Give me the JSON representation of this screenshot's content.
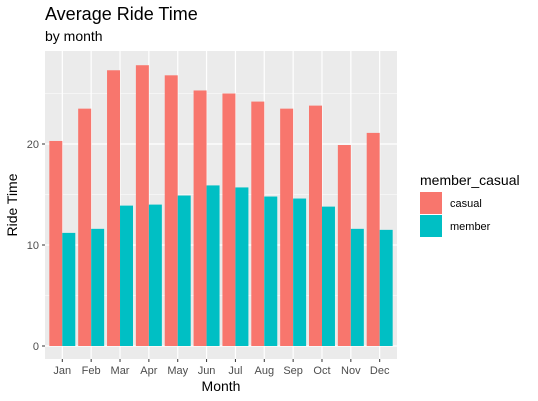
{
  "chart_data": {
    "type": "bar",
    "title": "Average Ride Time",
    "subtitle": "by month",
    "xlabel": "Month",
    "ylabel": "Ride Time",
    "categories": [
      "Jan",
      "Feb",
      "Mar",
      "Apr",
      "May",
      "Jun",
      "Jul",
      "Aug",
      "Sep",
      "Oct",
      "Nov",
      "Dec"
    ],
    "series": [
      {
        "name": "casual",
        "color": "#F8766D",
        "values": [
          20.3,
          23.5,
          27.3,
          27.8,
          26.8,
          25.3,
          25.0,
          24.2,
          23.5,
          23.8,
          19.9,
          21.1
        ]
      },
      {
        "name": "member",
        "color": "#00BFC4",
        "values": [
          11.2,
          11.6,
          13.9,
          14.0,
          14.9,
          15.9,
          15.7,
          14.8,
          14.6,
          13.8,
          11.6,
          11.5
        ]
      }
    ],
    "ylim": [
      0,
      29
    ],
    "yticks": [
      0,
      10,
      20
    ],
    "grid": true,
    "legend": {
      "title": "member_casual",
      "placement": "right",
      "entries": [
        "casual",
        "member"
      ]
    },
    "panel_background": "#EBEBEB",
    "grid_color": "#FFFFFF"
  }
}
